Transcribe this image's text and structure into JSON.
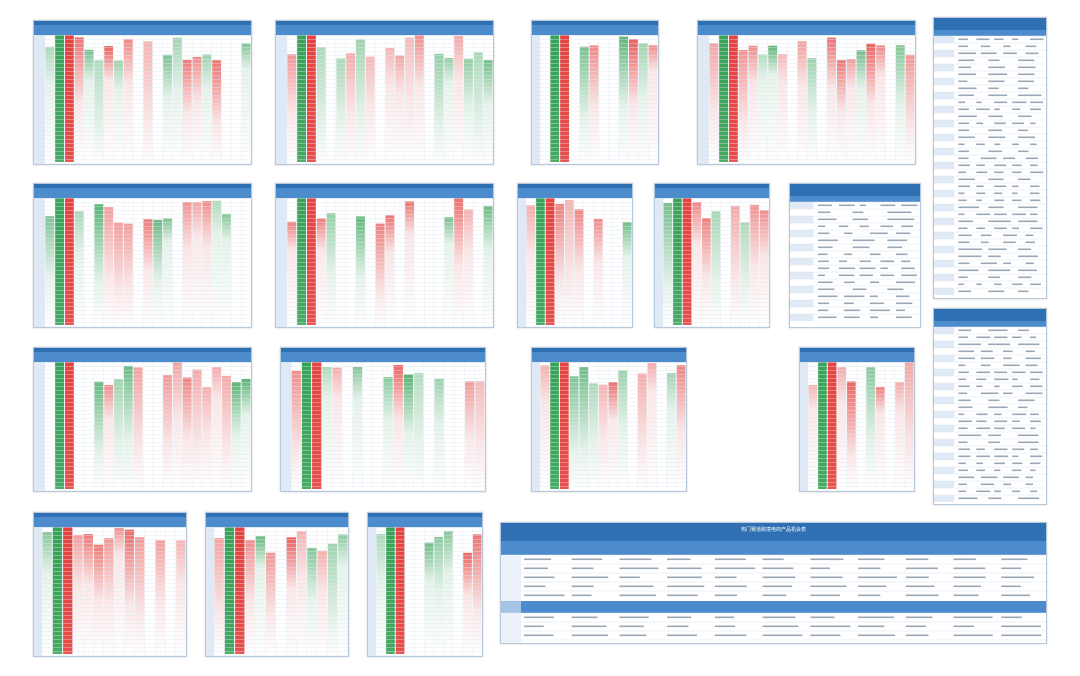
{
  "gallery": {
    "thumbnails": [
      {
        "kind": "heatmap",
        "title": ""
      },
      {
        "kind": "heatmap",
        "title": ""
      },
      {
        "kind": "heatmap",
        "title": ""
      },
      {
        "kind": "heatmap",
        "title": ""
      },
      {
        "kind": "table",
        "title": ""
      },
      {
        "kind": "heatmap",
        "title": ""
      },
      {
        "kind": "heatmap",
        "title": ""
      },
      {
        "kind": "heatmap",
        "title": ""
      },
      {
        "kind": "heatmap",
        "title": ""
      },
      {
        "kind": "table",
        "title": ""
      },
      {
        "kind": "table",
        "title": ""
      },
      {
        "kind": "heatmap",
        "title": ""
      },
      {
        "kind": "heatmap",
        "title": ""
      },
      {
        "kind": "heatmap",
        "title": ""
      },
      {
        "kind": "heatmap",
        "title": ""
      },
      {
        "kind": "heatmap",
        "title": ""
      },
      {
        "kind": "heatmap",
        "title": ""
      },
      {
        "kind": "heatmap",
        "title": ""
      },
      {
        "kind": "wide-table",
        "title": "热门赛道跨境电商产品机会表"
      }
    ],
    "colors": {
      "header": "#2f6fb3",
      "header_light": "#4d8ccc",
      "green": "#2e9e4e",
      "red": "#e53935",
      "grid": "#dde6f0",
      "side": "#dfeaf6"
    }
  }
}
